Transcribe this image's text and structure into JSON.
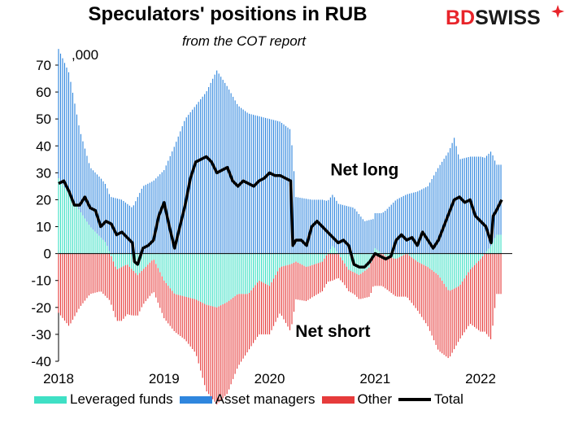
{
  "title": "Speculators' positions in RUB",
  "subtitle": "from the COT report",
  "logo": {
    "part1": "BD",
    "part2": "SWISS"
  },
  "chart_data": {
    "type": "bar",
    "unit_label": ",000",
    "ylim": [
      -40,
      70
    ],
    "yticks": [
      -40,
      -30,
      -20,
      -10,
      0,
      10,
      20,
      30,
      40,
      50,
      60,
      70
    ],
    "x_range": [
      2018.0,
      2022.3
    ],
    "xticks": [
      {
        "label": "2018",
        "x": 2018.0
      },
      {
        "label": "2019",
        "x": 2019.0
      },
      {
        "label": "2020",
        "x": 2020.0
      },
      {
        "label": "2021",
        "x": 2021.0
      },
      {
        "label": "2022",
        "x": 2022.0
      }
    ],
    "annotations": [
      {
        "text": "Net long",
        "x": 2020.9,
        "y": 29
      },
      {
        "text": "Net short",
        "x": 2020.6,
        "y": -31
      }
    ],
    "colors": {
      "leveraged": "#3fe0c5",
      "asset": "#2f86de",
      "other": "#e63b3b",
      "total": "#000000"
    },
    "series": [
      {
        "name": "Leveraged funds",
        "kind": "bar",
        "color": "#3fe0c5",
        "points": [
          [
            2018.0,
            28
          ],
          [
            2018.15,
            19
          ],
          [
            2018.3,
            10
          ],
          [
            2018.45,
            4
          ],
          [
            2018.55,
            -6
          ],
          [
            2018.65,
            -4
          ],
          [
            2018.75,
            -8
          ],
          [
            2018.85,
            -4
          ],
          [
            2018.9,
            -2
          ],
          [
            2019.0,
            -10
          ],
          [
            2019.1,
            -15
          ],
          [
            2019.2,
            -16
          ],
          [
            2019.3,
            -17
          ],
          [
            2019.4,
            -19
          ],
          [
            2019.5,
            -20
          ],
          [
            2019.6,
            -18
          ],
          [
            2019.7,
            -15
          ],
          [
            2019.8,
            -15
          ],
          [
            2019.9,
            -10
          ],
          [
            2020.0,
            -12
          ],
          [
            2020.1,
            -5
          ],
          [
            2020.2,
            -4
          ],
          [
            2020.25,
            -3
          ],
          [
            2020.35,
            -5
          ],
          [
            2020.5,
            -3
          ],
          [
            2020.6,
            3
          ],
          [
            2020.75,
            -6
          ],
          [
            2020.85,
            -8
          ],
          [
            2020.95,
            -5
          ],
          [
            2021.0,
            2
          ],
          [
            2021.1,
            -1
          ],
          [
            2021.2,
            -2
          ],
          [
            2021.3,
            0
          ],
          [
            2021.4,
            -3
          ],
          [
            2021.5,
            -5
          ],
          [
            2021.6,
            -8
          ],
          [
            2021.7,
            -14
          ],
          [
            2021.8,
            -12
          ],
          [
            2021.9,
            -6
          ],
          [
            2022.0,
            -2
          ],
          [
            2022.1,
            3
          ],
          [
            2022.15,
            7
          ]
        ]
      },
      {
        "name": "Asset managers",
        "kind": "bar",
        "color": "#2f86de",
        "points": [
          [
            2018.0,
            48
          ],
          [
            2018.1,
            45
          ],
          [
            2018.2,
            30
          ],
          [
            2018.3,
            22
          ],
          [
            2018.4,
            22
          ],
          [
            2018.5,
            21
          ],
          [
            2018.6,
            20
          ],
          [
            2018.7,
            17
          ],
          [
            2018.8,
            25
          ],
          [
            2018.9,
            27
          ],
          [
            2019.0,
            31
          ],
          [
            2019.1,
            40
          ],
          [
            2019.2,
            50
          ],
          [
            2019.3,
            55
          ],
          [
            2019.4,
            60
          ],
          [
            2019.5,
            68
          ],
          [
            2019.6,
            62
          ],
          [
            2019.7,
            55
          ],
          [
            2019.8,
            52
          ],
          [
            2019.9,
            51
          ],
          [
            2020.0,
            50
          ],
          [
            2020.1,
            49
          ],
          [
            2020.2,
            46
          ],
          [
            2020.25,
            21
          ],
          [
            2020.4,
            20
          ],
          [
            2020.5,
            20
          ],
          [
            2020.6,
            19
          ],
          [
            2020.7,
            18
          ],
          [
            2020.8,
            17
          ],
          [
            2020.9,
            12
          ],
          [
            2021.0,
            13
          ],
          [
            2021.1,
            16
          ],
          [
            2021.2,
            20
          ],
          [
            2021.3,
            22
          ],
          [
            2021.4,
            23
          ],
          [
            2021.5,
            25
          ],
          [
            2021.6,
            32
          ],
          [
            2021.7,
            38
          ],
          [
            2021.75,
            43
          ],
          [
            2021.8,
            35
          ],
          [
            2021.9,
            36
          ],
          [
            2022.0,
            36
          ],
          [
            2022.1,
            35
          ],
          [
            2022.15,
            26
          ]
        ]
      },
      {
        "name": "Other",
        "kind": "bar",
        "color": "#e63b3b",
        "points": [
          [
            2018.0,
            -22
          ],
          [
            2018.1,
            -27
          ],
          [
            2018.2,
            -20
          ],
          [
            2018.3,
            -15
          ],
          [
            2018.4,
            -14
          ],
          [
            2018.5,
            -18
          ],
          [
            2018.6,
            -20
          ],
          [
            2018.7,
            -17
          ],
          [
            2018.8,
            -13
          ],
          [
            2018.9,
            -12
          ],
          [
            2019.0,
            -14
          ],
          [
            2019.1,
            -14
          ],
          [
            2019.2,
            -16
          ],
          [
            2019.3,
            -20
          ],
          [
            2019.4,
            -32
          ],
          [
            2019.5,
            -36
          ],
          [
            2019.6,
            -34
          ],
          [
            2019.7,
            -27
          ],
          [
            2019.8,
            -21
          ],
          [
            2019.9,
            -20
          ],
          [
            2020.0,
            -18
          ],
          [
            2020.1,
            -17
          ],
          [
            2020.2,
            -25
          ],
          [
            2020.25,
            -14
          ],
          [
            2020.4,
            -12
          ],
          [
            2020.5,
            -11
          ],
          [
            2020.6,
            -10
          ],
          [
            2020.7,
            -8
          ],
          [
            2020.8,
            -8
          ],
          [
            2020.9,
            -10
          ],
          [
            2021.0,
            -12
          ],
          [
            2021.1,
            -12
          ],
          [
            2021.2,
            -14
          ],
          [
            2021.3,
            -16
          ],
          [
            2021.4,
            -18
          ],
          [
            2021.5,
            -22
          ],
          [
            2021.6,
            -28
          ],
          [
            2021.7,
            -25
          ],
          [
            2021.8,
            -20
          ],
          [
            2021.9,
            -20
          ],
          [
            2022.0,
            -27
          ],
          [
            2022.1,
            -32
          ],
          [
            2022.15,
            -15
          ]
        ]
      },
      {
        "name": "Total",
        "kind": "line",
        "color": "#000000",
        "points": [
          [
            2018.0,
            26
          ],
          [
            2018.05,
            27
          ],
          [
            2018.1,
            23
          ],
          [
            2018.15,
            18
          ],
          [
            2018.2,
            18
          ],
          [
            2018.25,
            21
          ],
          [
            2018.3,
            17
          ],
          [
            2018.35,
            16
          ],
          [
            2018.4,
            10
          ],
          [
            2018.45,
            12
          ],
          [
            2018.5,
            11
          ],
          [
            2018.55,
            7
          ],
          [
            2018.6,
            8
          ],
          [
            2018.65,
            6
          ],
          [
            2018.7,
            4
          ],
          [
            2018.72,
            -3
          ],
          [
            2018.75,
            -4
          ],
          [
            2018.8,
            2
          ],
          [
            2018.85,
            3
          ],
          [
            2018.9,
            5
          ],
          [
            2018.95,
            14
          ],
          [
            2019.0,
            19
          ],
          [
            2019.05,
            10
          ],
          [
            2019.1,
            2
          ],
          [
            2019.15,
            10
          ],
          [
            2019.2,
            18
          ],
          [
            2019.25,
            28
          ],
          [
            2019.3,
            34
          ],
          [
            2019.35,
            35
          ],
          [
            2019.4,
            36
          ],
          [
            2019.45,
            34
          ],
          [
            2019.5,
            30
          ],
          [
            2019.55,
            31
          ],
          [
            2019.6,
            32
          ],
          [
            2019.65,
            27
          ],
          [
            2019.7,
            25
          ],
          [
            2019.75,
            27
          ],
          [
            2019.8,
            26
          ],
          [
            2019.85,
            25
          ],
          [
            2019.9,
            27
          ],
          [
            2019.95,
            28
          ],
          [
            2020.0,
            30
          ],
          [
            2020.05,
            29
          ],
          [
            2020.1,
            29
          ],
          [
            2020.15,
            28
          ],
          [
            2020.2,
            27
          ],
          [
            2020.22,
            3
          ],
          [
            2020.25,
            5
          ],
          [
            2020.3,
            5
          ],
          [
            2020.35,
            3
          ],
          [
            2020.4,
            10
          ],
          [
            2020.45,
            12
          ],
          [
            2020.5,
            10
          ],
          [
            2020.55,
            8
          ],
          [
            2020.6,
            6
          ],
          [
            2020.65,
            4
          ],
          [
            2020.7,
            5
          ],
          [
            2020.75,
            3
          ],
          [
            2020.8,
            -4
          ],
          [
            2020.85,
            -5
          ],
          [
            2020.9,
            -5
          ],
          [
            2020.95,
            -3
          ],
          [
            2021.0,
            0
          ],
          [
            2021.05,
            -1
          ],
          [
            2021.1,
            -2
          ],
          [
            2021.15,
            -1
          ],
          [
            2021.2,
            5
          ],
          [
            2021.25,
            7
          ],
          [
            2021.3,
            5
          ],
          [
            2021.35,
            6
          ],
          [
            2021.4,
            3
          ],
          [
            2021.45,
            8
          ],
          [
            2021.5,
            5
          ],
          [
            2021.55,
            2
          ],
          [
            2021.6,
            5
          ],
          [
            2021.65,
            10
          ],
          [
            2021.7,
            15
          ],
          [
            2021.75,
            20
          ],
          [
            2021.8,
            21
          ],
          [
            2021.85,
            19
          ],
          [
            2021.9,
            20
          ],
          [
            2021.95,
            14
          ],
          [
            2022.0,
            12
          ],
          [
            2022.05,
            10
          ],
          [
            2022.1,
            4
          ],
          [
            2022.12,
            14
          ],
          [
            2022.15,
            16
          ],
          [
            2022.2,
            20
          ]
        ]
      }
    ]
  }
}
